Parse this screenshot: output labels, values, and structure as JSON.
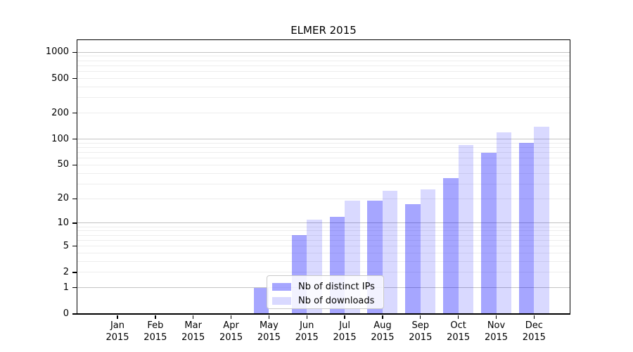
{
  "page": {
    "background": "#ffffff"
  },
  "chart_data": {
    "type": "bar",
    "title": "ELMER 2015",
    "year": "2015",
    "months": [
      "Jan",
      "Feb",
      "Mar",
      "Apr",
      "May",
      "Jun",
      "Jul",
      "Aug",
      "Sep",
      "Oct",
      "Nov",
      "Dec"
    ],
    "categories": [
      "Jan 2015",
      "Feb 2015",
      "Mar 2015",
      "Apr 2015",
      "May 2015",
      "Jun 2015",
      "Jul 2015",
      "Aug 2015",
      "Sep 2015",
      "Oct 2015",
      "Nov 2015",
      "Dec 2015"
    ],
    "series": [
      {
        "name": "Nb of distinct IPs",
        "color": "#a6a6ff",
        "rgba": "rgba(0,0,255,0.35)",
        "values": [
          0,
          0,
          0,
          0,
          1,
          7,
          12,
          19,
          17,
          35,
          70,
          90
        ]
      },
      {
        "name": "Nb of downloads",
        "color": "#d9d9ff",
        "rgba": "rgba(0,0,255,0.15)",
        "values": [
          0,
          0,
          0,
          0,
          0,
          11,
          19,
          25,
          26,
          85,
          120,
          140
        ]
      }
    ],
    "yscale": "log1p",
    "y_ticks": [
      0,
      1,
      2,
      5,
      10,
      20,
      50,
      100,
      200,
      500,
      1000
    ],
    "y_tick_labels": [
      "0",
      "1",
      "2",
      "5",
      "10",
      "20",
      "50",
      "100",
      "200",
      "500",
      "1000"
    ],
    "ylim": [
      0,
      1380
    ],
    "xlabel": "",
    "ylabel": "",
    "grid": {
      "horizontal": true,
      "minor": true,
      "vertical": false
    },
    "legend_position": "lower-center-left"
  }
}
